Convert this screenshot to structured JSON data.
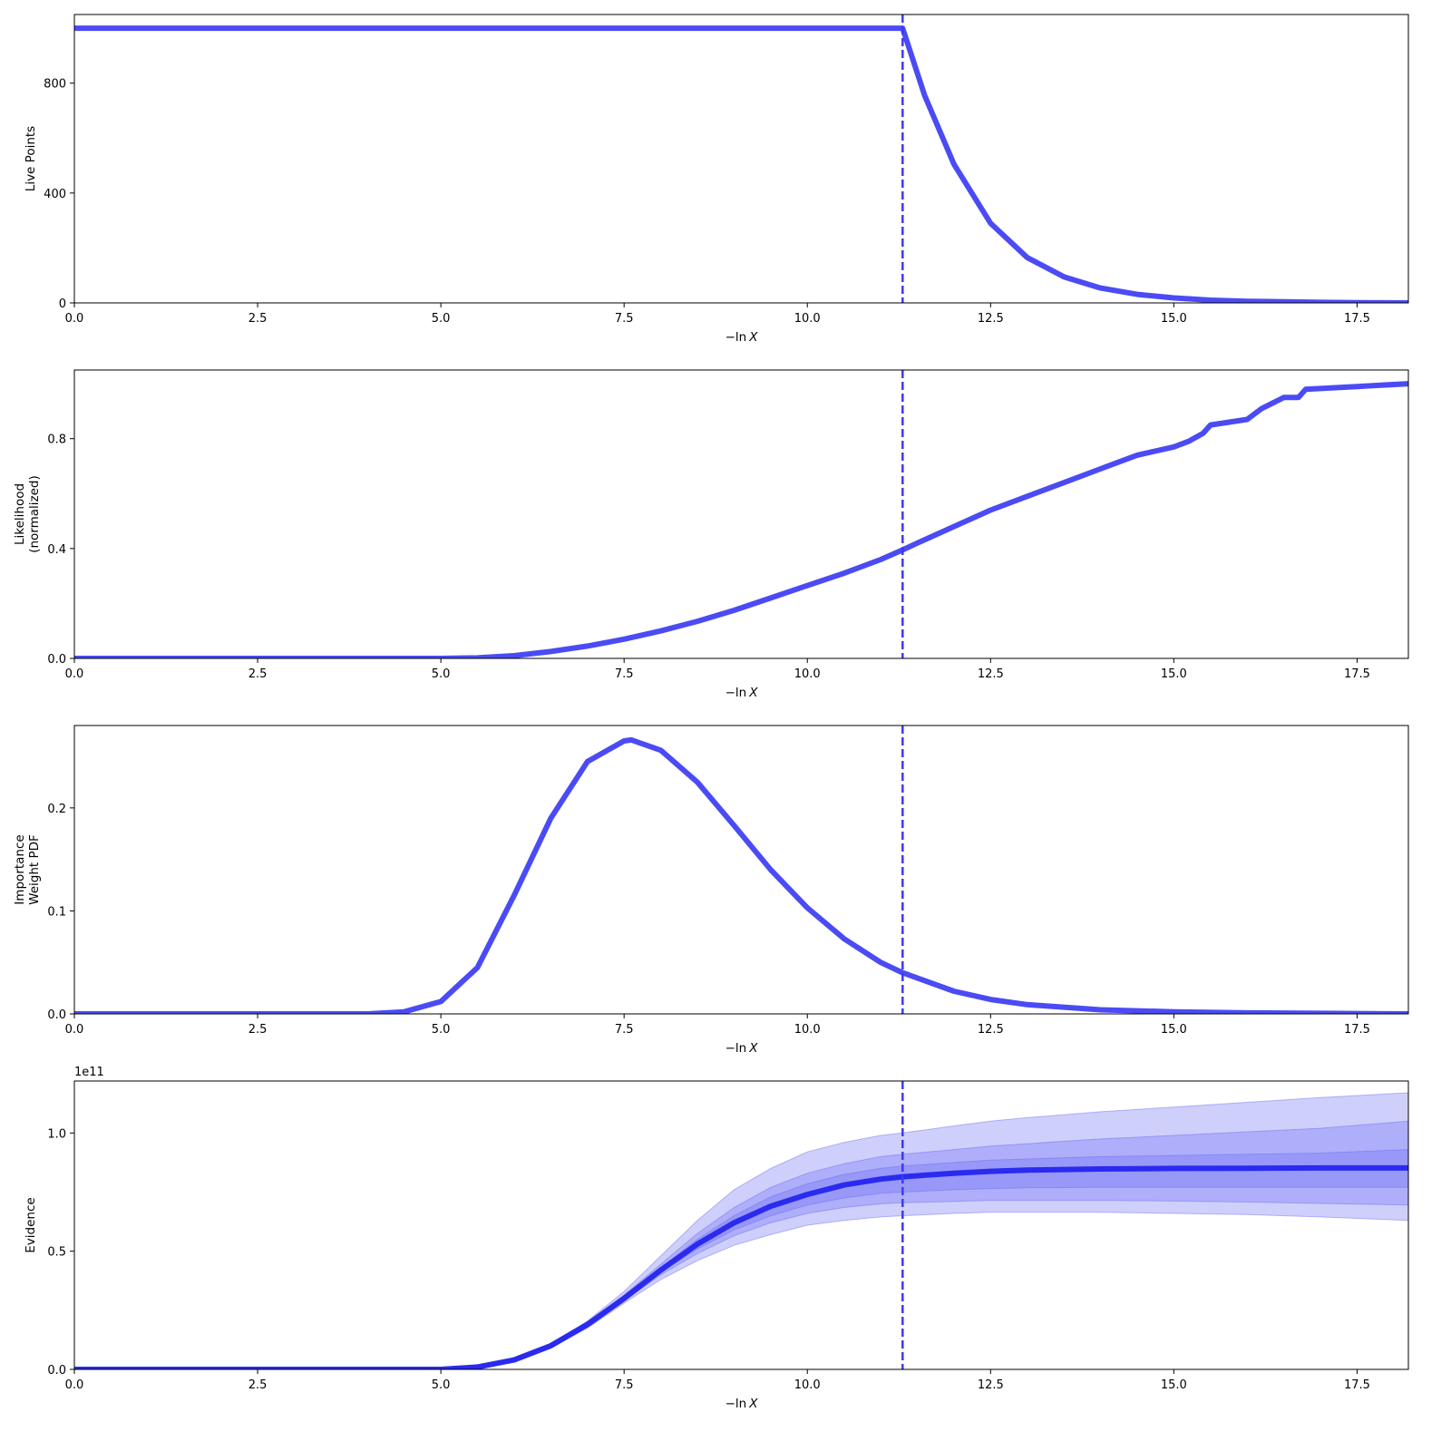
{
  "colors": {
    "line": "#4b4bf5",
    "evidence_line": "#2a2af0",
    "band": "#6a6af5",
    "vline": "#3a3af5",
    "axes": "#000000"
  },
  "chart_data": [
    {
      "type": "line",
      "ylabel": [
        "Live Points"
      ],
      "xlabel_prefix": "−ln",
      "xlabel_var": "X",
      "xlim": [
        0,
        18.2
      ],
      "ylim": [
        0,
        1050
      ],
      "xticks": [
        0,
        2.5,
        5,
        7.5,
        10,
        12.5,
        15,
        17.5
      ],
      "xtick_labels": [
        "0.0",
        "2.5",
        "5.0",
        "7.5",
        "10.0",
        "12.5",
        "15.0",
        "17.5"
      ],
      "yticks": [
        0,
        400,
        800
      ],
      "ytick_labels": [
        "0",
        "400",
        "800"
      ],
      "vline_x": 11.3,
      "series": [
        {
          "x": [
            0,
            11.3,
            11.6,
            12.0,
            12.5,
            13.0,
            13.5,
            14.0,
            14.5,
            15.0,
            15.5,
            16.0,
            16.5,
            17.0,
            17.5,
            18.2
          ],
          "y": [
            1000,
            1000,
            755,
            505,
            290,
            165,
            95,
            54,
            31,
            18,
            10,
            6,
            4,
            2,
            1,
            0
          ]
        }
      ]
    },
    {
      "type": "line",
      "ylabel": [
        "Likelihood",
        "(normalized)"
      ],
      "xlabel_prefix": "−ln",
      "xlabel_var": "X",
      "xlim": [
        0,
        18.2
      ],
      "ylim": [
        0,
        1.05
      ],
      "xticks": [
        0,
        2.5,
        5,
        7.5,
        10,
        12.5,
        15,
        17.5
      ],
      "xtick_labels": [
        "0.0",
        "2.5",
        "5.0",
        "7.5",
        "10.0",
        "12.5",
        "15.0",
        "17.5"
      ],
      "yticks": [
        0,
        0.4,
        0.8
      ],
      "ytick_labels": [
        "0.0",
        "0.4",
        "0.8"
      ],
      "vline_x": 11.3,
      "series": [
        {
          "x": [
            0,
            5.0,
            5.5,
            6.0,
            6.5,
            7.0,
            7.5,
            8.0,
            8.5,
            9.0,
            9.5,
            10.0,
            10.5,
            11.0,
            11.3,
            11.5,
            12.0,
            12.5,
            13.0,
            13.5,
            14.0,
            14.3,
            14.5,
            15.0,
            15.2,
            15.4,
            15.5,
            16.0,
            16.2,
            16.5,
            16.7,
            16.8,
            17.5,
            18.2
          ],
          "y": [
            0,
            0,
            0.002,
            0.01,
            0.025,
            0.045,
            0.07,
            0.1,
            0.135,
            0.175,
            0.22,
            0.265,
            0.31,
            0.36,
            0.395,
            0.42,
            0.48,
            0.54,
            0.59,
            0.64,
            0.69,
            0.72,
            0.74,
            0.77,
            0.79,
            0.82,
            0.85,
            0.87,
            0.91,
            0.95,
            0.95,
            0.98,
            0.99,
            1.0
          ]
        }
      ]
    },
    {
      "type": "line",
      "ylabel": [
        "Importance",
        "Weight PDF"
      ],
      "xlabel_prefix": "−ln",
      "xlabel_var": "X",
      "xlim": [
        0,
        18.2
      ],
      "ylim": [
        0,
        0.28
      ],
      "xticks": [
        0,
        2.5,
        5,
        7.5,
        10,
        12.5,
        15,
        17.5
      ],
      "xtick_labels": [
        "0.0",
        "2.5",
        "5.0",
        "7.5",
        "10.0",
        "12.5",
        "15.0",
        "17.5"
      ],
      "yticks": [
        0,
        0.1,
        0.2
      ],
      "ytick_labels": [
        "0.0",
        "0.1",
        "0.2"
      ],
      "vline_x": 11.3,
      "series": [
        {
          "x": [
            0,
            4.0,
            4.5,
            5.0,
            5.5,
            6.0,
            6.5,
            7.0,
            7.5,
            7.6,
            8.0,
            8.5,
            9.0,
            9.5,
            10.0,
            10.5,
            11.0,
            11.3,
            12.0,
            12.5,
            13.0,
            14.0,
            15.0,
            16.0,
            17.0,
            18.2
          ],
          "y": [
            0,
            0,
            0.002,
            0.012,
            0.045,
            0.115,
            0.19,
            0.245,
            0.265,
            0.266,
            0.256,
            0.225,
            0.183,
            0.14,
            0.103,
            0.073,
            0.05,
            0.04,
            0.022,
            0.014,
            0.009,
            0.004,
            0.002,
            0.001,
            0.0005,
            0
          ]
        }
      ]
    },
    {
      "type": "area",
      "ylabel": [
        "Evidence"
      ],
      "offset_label": "1e11",
      "xlabel_prefix": "−ln",
      "xlabel_var": "X",
      "xlim": [
        0,
        18.2
      ],
      "ylim": [
        0,
        1.22
      ],
      "xticks": [
        0,
        2.5,
        5,
        7.5,
        10,
        12.5,
        15,
        17.5
      ],
      "xtick_labels": [
        "0.0",
        "2.5",
        "5.0",
        "7.5",
        "10.0",
        "12.5",
        "15.0",
        "17.5"
      ],
      "yticks": [
        0,
        0.5,
        1.0
      ],
      "ytick_labels": [
        "0.0",
        "0.5",
        "1.0"
      ],
      "vline_x": 11.3,
      "x": [
        0,
        5.0,
        5.5,
        6.0,
        6.5,
        7.0,
        7.5,
        8.0,
        8.5,
        9.0,
        9.5,
        10.0,
        10.5,
        11.0,
        11.3,
        12.0,
        12.5,
        13.0,
        14.0,
        15.0,
        16.0,
        17.0,
        18.2
      ],
      "median": [
        0,
        0,
        0.01,
        0.04,
        0.1,
        0.19,
        0.3,
        0.42,
        0.53,
        0.62,
        0.69,
        0.74,
        0.78,
        0.805,
        0.815,
        0.83,
        0.838,
        0.843,
        0.848,
        0.85,
        0.851,
        0.852,
        0.852
      ],
      "bands": [
        {
          "lower": [
            0,
            0,
            0.01,
            0.038,
            0.09,
            0.175,
            0.28,
            0.38,
            0.46,
            0.525,
            0.57,
            0.61,
            0.63,
            0.645,
            0.65,
            0.66,
            0.665,
            0.665,
            0.665,
            0.66,
            0.655,
            0.645,
            0.63
          ],
          "upper": [
            0,
            0,
            0.011,
            0.042,
            0.11,
            0.205,
            0.33,
            0.48,
            0.63,
            0.76,
            0.85,
            0.92,
            0.96,
            0.99,
            1.0,
            1.03,
            1.05,
            1.065,
            1.09,
            1.11,
            1.13,
            1.15,
            1.17
          ]
        },
        {
          "lower": [
            0,
            0,
            0.01,
            0.039,
            0.093,
            0.18,
            0.29,
            0.4,
            0.49,
            0.565,
            0.62,
            0.66,
            0.685,
            0.7,
            0.705,
            0.71,
            0.715,
            0.715,
            0.715,
            0.712,
            0.708,
            0.702,
            0.695
          ],
          "upper": [
            0,
            0,
            0.011,
            0.041,
            0.105,
            0.2,
            0.315,
            0.445,
            0.575,
            0.685,
            0.77,
            0.83,
            0.87,
            0.9,
            0.91,
            0.93,
            0.945,
            0.955,
            0.975,
            0.99,
            1.005,
            1.02,
            1.05
          ]
        },
        {
          "lower": [
            0,
            0,
            0.01,
            0.04,
            0.097,
            0.185,
            0.295,
            0.41,
            0.51,
            0.59,
            0.65,
            0.695,
            0.725,
            0.745,
            0.75,
            0.76,
            0.765,
            0.768,
            0.77,
            0.77,
            0.77,
            0.77,
            0.77
          ],
          "upper": [
            0,
            0,
            0.01,
            0.04,
            0.103,
            0.195,
            0.305,
            0.43,
            0.55,
            0.65,
            0.73,
            0.785,
            0.825,
            0.85,
            0.86,
            0.875,
            0.885,
            0.89,
            0.9,
            0.905,
            0.91,
            0.915,
            0.93
          ]
        }
      ]
    }
  ]
}
